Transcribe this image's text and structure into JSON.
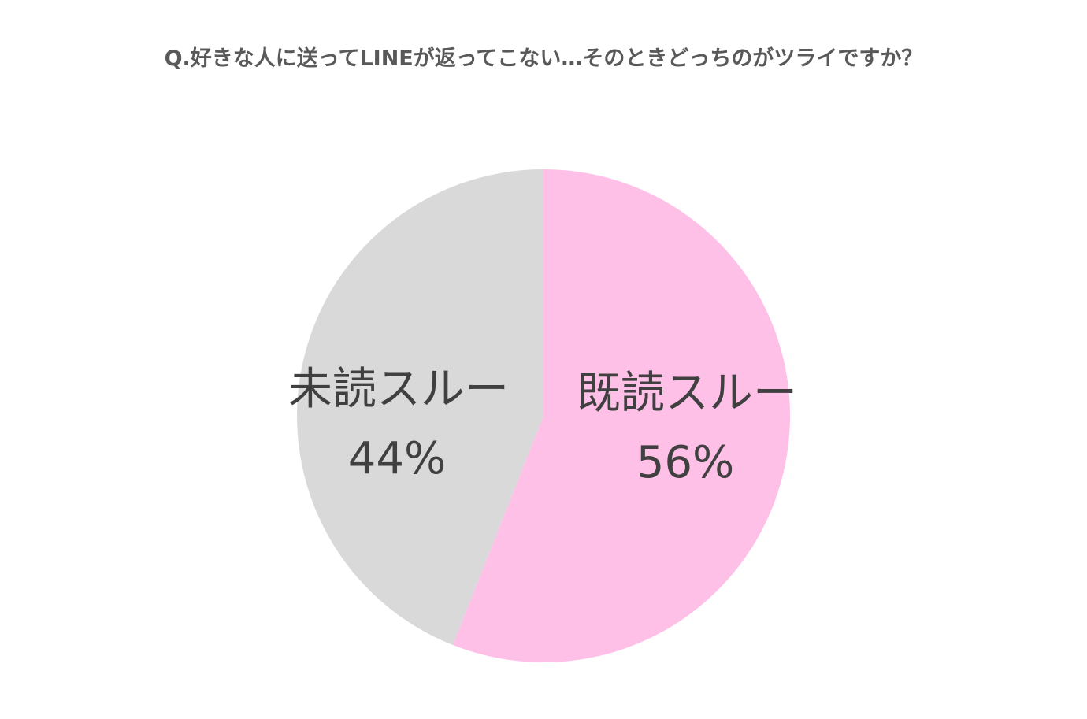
{
  "chart_data": {
    "type": "pie",
    "title": "Q.好きな人に送ってLINEが返ってこない…そのときどっちのがツライですか？",
    "slices": [
      {
        "label": "既読スルー",
        "value": 56,
        "value_text": "56%",
        "color": "#FFC0E8"
      },
      {
        "label": "未読スルー",
        "value": 44,
        "value_text": "44%",
        "color": "#D9D9D9"
      }
    ],
    "start_angle": "12 o'clock",
    "direction": "clockwise",
    "legend": "none",
    "data_labels": "inside"
  }
}
